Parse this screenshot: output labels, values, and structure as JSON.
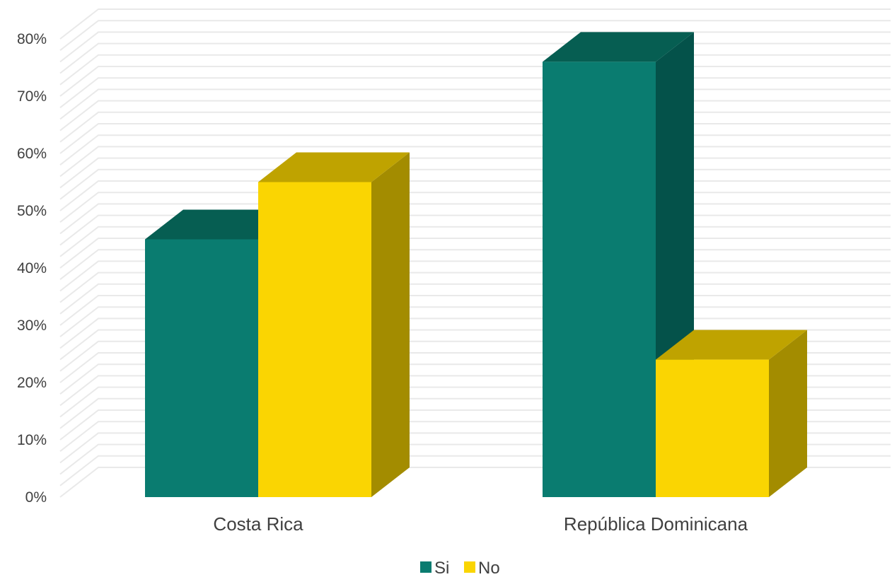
{
  "chart_data": {
    "type": "bar",
    "title": "",
    "xlabel": "",
    "ylabel": "",
    "categories": [
      "Costa Rica",
      "República Dominicana"
    ],
    "series": [
      {
        "name": "Si",
        "values": [
          45,
          76
        ],
        "color": "#0A7C70",
        "top_color": "#065E52",
        "side_color": "#04524A"
      },
      {
        "name": "No",
        "values": [
          55,
          24
        ],
        "color": "#FAD502",
        "top_color": "#BFA300",
        "side_color": "#A38C00"
      }
    ],
    "ylim": [
      0,
      80
    ],
    "yticks": [
      "0%",
      "10%",
      "20%",
      "30%",
      "40%",
      "50%",
      "60%",
      "70%",
      "80%"
    ],
    "grid": true,
    "legend": "bottom",
    "three_d": true
  }
}
